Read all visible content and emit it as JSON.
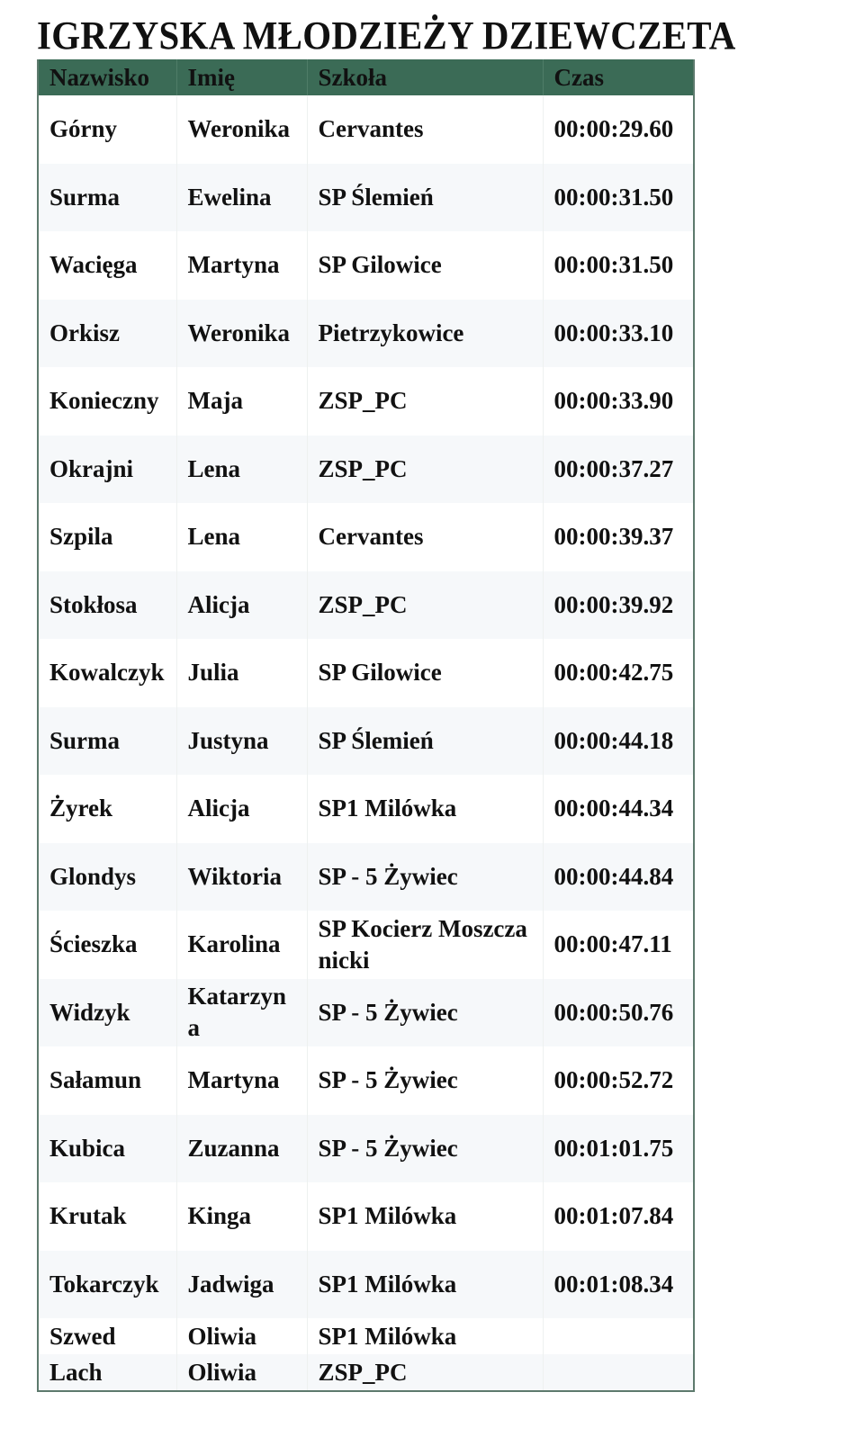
{
  "title": "IGRZYSKA MŁODZIEŻY DZIEWCZETA",
  "colors": {
    "header_bg": "#3b6b56",
    "row_alt": "#f6f8fa"
  },
  "table": {
    "headers": [
      "Nazwisko",
      "Imię",
      "Szkoła",
      "Czas"
    ],
    "rows": [
      [
        "Górny",
        "Weronika",
        "Cervantes",
        "00:00:29.60"
      ],
      [
        "Surma",
        "Ewelina",
        "SP Ślemień",
        "00:00:31.50"
      ],
      [
        "Wacięga",
        "Martyna",
        "SP Gilowice",
        "00:00:31.50"
      ],
      [
        "Orkisz",
        "Weronika",
        "Pietrzykowice",
        "00:00:33.10"
      ],
      [
        "Konieczny",
        "Maja",
        "ZSP_PC",
        "00:00:33.90"
      ],
      [
        "Okrajni",
        "Lena",
        "ZSP_PC",
        "00:00:37.27"
      ],
      [
        "Szpila",
        "Lena",
        "Cervantes",
        "00:00:39.37"
      ],
      [
        "Stokłosa",
        "Alicja",
        "ZSP_PC",
        "00:00:39.92"
      ],
      [
        "Kowalczyk",
        "Julia",
        "SP Gilowice",
        "00:00:42.75"
      ],
      [
        "Surma",
        "Justyna",
        "SP Ślemień",
        "00:00:44.18"
      ],
      [
        "Żyrek",
        "Alicja",
        "SP1 Milówka",
        "00:00:44.34"
      ],
      [
        "Glondys",
        "Wiktoria",
        "SP - 5 Żywiec",
        "00:00:44.84"
      ],
      [
        "Ścieszka",
        "Karolina",
        "SP Kocierz Moszczanicki",
        "00:00:47.11"
      ],
      [
        "Widzyk",
        "Katarzyna",
        "SP - 5 Żywiec",
        "00:00:50.76"
      ],
      [
        "Sałamun",
        "Martyna",
        "SP - 5 Żywiec",
        "00:00:52.72"
      ],
      [
        "Kubica",
        "Zuzanna",
        "SP - 5 Żywiec",
        "00:01:01.75"
      ],
      [
        "Krutak",
        "Kinga",
        "SP1 Milówka",
        "00:01:07.84"
      ],
      [
        "Tokarczyk",
        "Jadwiga",
        "SP1 Milówka",
        "00:01:08.34"
      ],
      [
        "Szwed",
        "Oliwia",
        "SP1 Milówka",
        ""
      ],
      [
        "Lach",
        "Oliwia",
        "ZSP_PC",
        ""
      ]
    ]
  }
}
